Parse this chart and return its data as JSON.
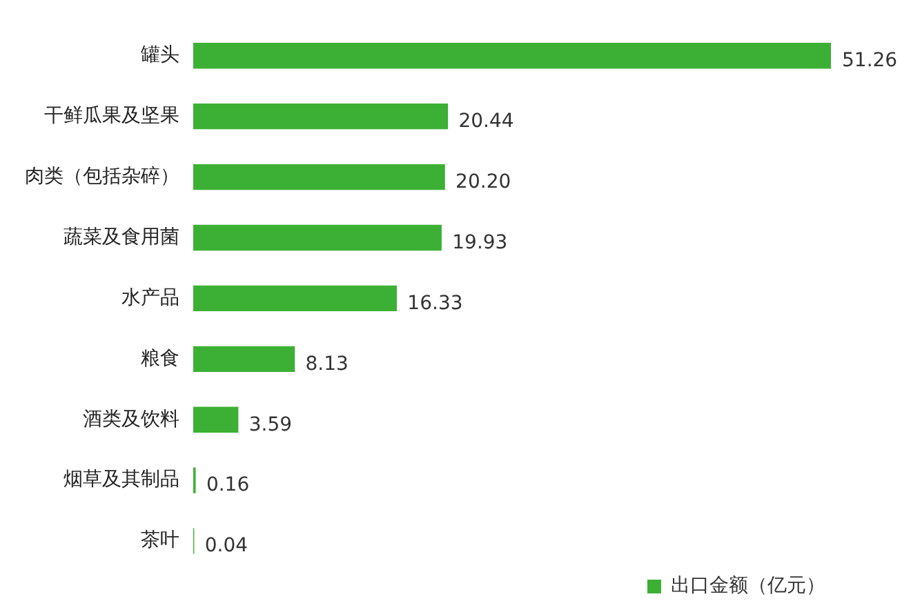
{
  "chart_data": {
    "type": "bar",
    "orientation": "horizontal",
    "categories": [
      "罐头",
      "干鲜瓜果及坚果",
      "肉类（包括杂碎）",
      "蔬菜及食用菌",
      "水产品",
      "粮食",
      "酒类及饮料",
      "烟草及其制品",
      "茶叶"
    ],
    "series": [
      {
        "name": "出口金额（亿元）",
        "color": "#3cb034",
        "values": [
          51.26,
          20.44,
          20.2,
          19.93,
          16.33,
          8.13,
          3.59,
          0.16,
          0.04
        ],
        "value_labels": [
          "51.26",
          "20.44",
          "20.20",
          "19.93",
          "16.33",
          "8.13",
          "3.59",
          "0.16",
          "0.04"
        ]
      }
    ],
    "grid": false,
    "legend": "bottom right",
    "tick_labels": "y"
  }
}
